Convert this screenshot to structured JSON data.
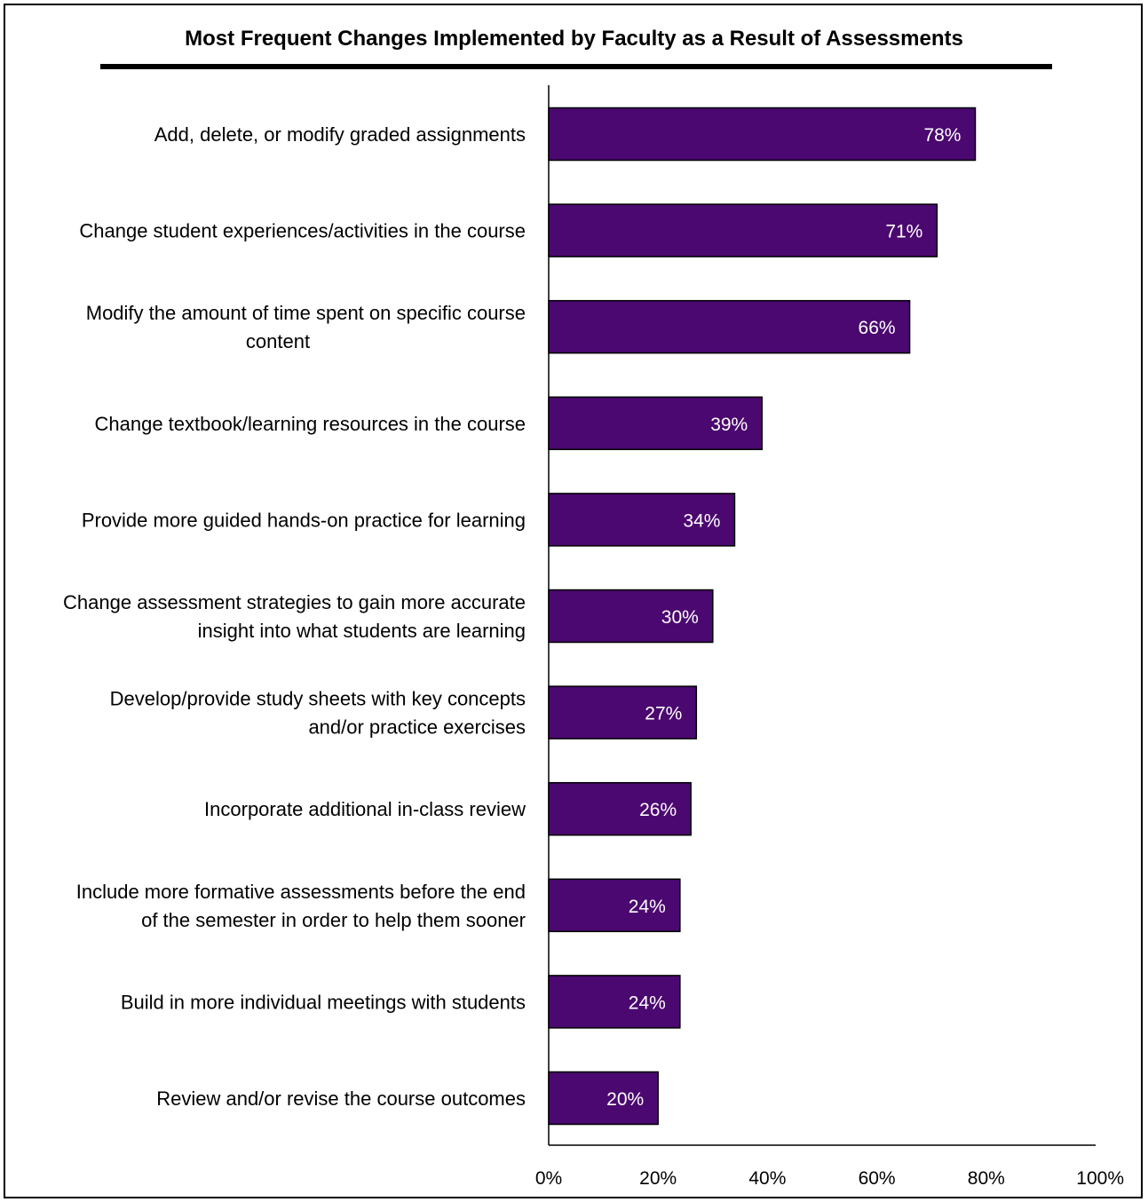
{
  "chart_data": {
    "type": "bar",
    "orientation": "horizontal",
    "title": "Most Frequent Changes Implemented by Faculty as a Result of Assessments",
    "categories": [
      [
        "Add, delete, or modify graded assignments"
      ],
      [
        "Change student experiences/activities in the course"
      ],
      [
        "Modify the amount of time spent on specific course",
        "content"
      ],
      [
        "Change textbook/learning resources in the course"
      ],
      [
        "Provide more guided hands-on practice for learning"
      ],
      [
        "Change assessment strategies to gain more accurate",
        "insight into what students are learning"
      ],
      [
        "Develop/provide study sheets with key concepts",
        "and/or practice exercises"
      ],
      [
        "Incorporate additional in-class review"
      ],
      [
        "Include more formative assessments before the end",
        "of the semester in order to help them sooner"
      ],
      [
        "Build in more individual meetings with students"
      ],
      [
        "Review and/or revise  the course outcomes"
      ]
    ],
    "values": [
      78,
      71,
      66,
      39,
      34,
      30,
      27,
      26,
      24,
      24,
      20
    ],
    "data_labels": [
      "78%",
      "71%",
      "66%",
      "39%",
      "34%",
      "30%",
      "27%",
      "26%",
      "24%",
      "24%",
      "20%"
    ],
    "xlim": [
      0,
      100
    ],
    "xticks": [
      "0%",
      "20%",
      "40%",
      "60%",
      "80%",
      "100%"
    ],
    "grid": false,
    "bar_color": "#4B0870"
  }
}
